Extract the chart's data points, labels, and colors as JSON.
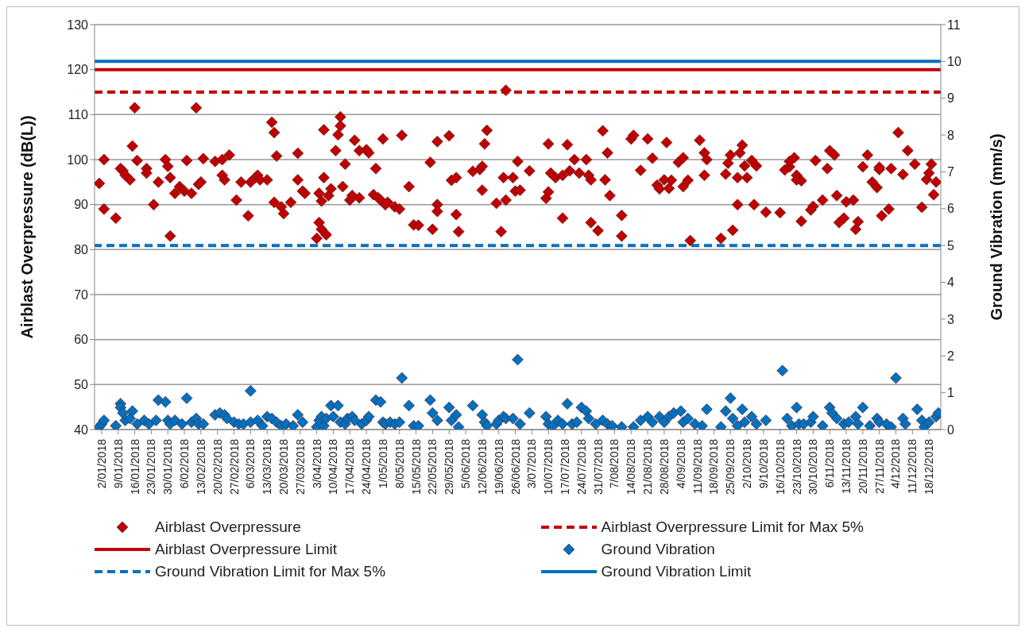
{
  "chart_data": {
    "type": "scatter",
    "ylabel": "Airblast Overpressure (dB(L))",
    "y2label": "Ground Vibration (mm/s)",
    "xlim": [
      "2017-12-30",
      "2018-12-23"
    ],
    "xticks": [
      {
        "value": "2018-01-02",
        "label": "2/01/2018"
      },
      {
        "value": "2018-01-09",
        "label": "9/01/2018"
      },
      {
        "value": "2018-01-16",
        "label": "16/01/2018"
      },
      {
        "value": "2018-01-23",
        "label": "23/01/2018"
      },
      {
        "value": "2018-01-30",
        "label": "30/01/2018"
      },
      {
        "value": "2018-02-06",
        "label": "6/02/2018"
      },
      {
        "value": "2018-02-13",
        "label": "13/02/2018"
      },
      {
        "value": "2018-02-20",
        "label": "20/02/2018"
      },
      {
        "value": "2018-02-27",
        "label": "27/02/2018"
      },
      {
        "value": "2018-03-06",
        "label": "6/03/2018"
      },
      {
        "value": "2018-03-13",
        "label": "13/03/2018"
      },
      {
        "value": "2018-03-20",
        "label": "20/03/2018"
      },
      {
        "value": "2018-03-27",
        "label": "27/03/2018"
      },
      {
        "value": "2018-04-03",
        "label": "3/04/2018"
      },
      {
        "value": "2018-04-10",
        "label": "10/04/2018"
      },
      {
        "value": "2018-04-17",
        "label": "17/04/2018"
      },
      {
        "value": "2018-04-24",
        "label": "24/04/2018"
      },
      {
        "value": "2018-05-01",
        "label": "1/05/2018"
      },
      {
        "value": "2018-05-08",
        "label": "8/05/2018"
      },
      {
        "value": "2018-05-15",
        "label": "15/05/2018"
      },
      {
        "value": "2018-05-22",
        "label": "22/05/2018"
      },
      {
        "value": "2018-05-29",
        "label": "29/05/2018"
      },
      {
        "value": "2018-06-05",
        "label": "5/06/2018"
      },
      {
        "value": "2018-06-12",
        "label": "12/06/2018"
      },
      {
        "value": "2018-06-19",
        "label": "19/06/2018"
      },
      {
        "value": "2018-06-26",
        "label": "26/06/2018"
      },
      {
        "value": "2018-07-03",
        "label": "3/07/2018"
      },
      {
        "value": "2018-07-10",
        "label": "10/07/2018"
      },
      {
        "value": "2018-07-17",
        "label": "17/07/2018"
      },
      {
        "value": "2018-07-24",
        "label": "24/07/2018"
      },
      {
        "value": "2018-07-31",
        "label": "31/07/2018"
      },
      {
        "value": "2018-08-07",
        "label": "7/08/2018"
      },
      {
        "value": "2018-08-14",
        "label": "14/08/2018"
      },
      {
        "value": "2018-08-21",
        "label": "21/08/2018"
      },
      {
        "value": "2018-08-28",
        "label": "28/08/2018"
      },
      {
        "value": "2018-09-04",
        "label": "4/09/2018"
      },
      {
        "value": "2018-09-11",
        "label": "11/09/2018"
      },
      {
        "value": "2018-09-18",
        "label": "18/09/2018"
      },
      {
        "value": "2018-09-25",
        "label": "25/09/2018"
      },
      {
        "value": "2018-10-02",
        "label": "2/10/2018"
      },
      {
        "value": "2018-10-09",
        "label": "9/10/2018"
      },
      {
        "value": "2018-10-16",
        "label": "16/10/2018"
      },
      {
        "value": "2018-10-23",
        "label": "23/10/2018"
      },
      {
        "value": "2018-10-30",
        "label": "30/10/2018"
      },
      {
        "value": "2018-11-06",
        "label": "6/11/2018"
      },
      {
        "value": "2018-11-13",
        "label": "13/11/2018"
      },
      {
        "value": "2018-11-20",
        "label": "20/11/2018"
      },
      {
        "value": "2018-11-27",
        "label": "27/11/2018"
      },
      {
        "value": "2018-12-04",
        "label": "4/12/2018"
      },
      {
        "value": "2018-12-11",
        "label": "11/12/2018"
      },
      {
        "value": "2018-12-18",
        "label": "18/12/2018"
      }
    ],
    "ylim": [
      40,
      130
    ],
    "yticks": [
      40,
      50,
      60,
      70,
      80,
      90,
      100,
      110,
      120,
      130
    ],
    "y2lim": [
      0,
      11
    ],
    "y2ticks": [
      0,
      1,
      2,
      3,
      4,
      5,
      6,
      7,
      8,
      9,
      10,
      11
    ],
    "grid": "y",
    "marker": "diamond",
    "legend": "bottom",
    "series": [
      {
        "name": "Airblast Overpressure",
        "color": "#c00000",
        "x": [
          "2018-01-01",
          "2018-01-03",
          "2018-01-03",
          "2018-01-08",
          "2018-01-10",
          "2018-01-11",
          "2018-01-12",
          "2018-01-14",
          "2018-01-15",
          "2018-01-16",
          "2018-01-17",
          "2018-01-21",
          "2018-01-21",
          "2018-01-24",
          "2018-01-26",
          "2018-01-29",
          "2018-01-30",
          "2018-01-31",
          "2018-01-31",
          "2018-02-02",
          "2018-02-04",
          "2018-02-06",
          "2018-02-07",
          "2018-02-09",
          "2018-02-11",
          "2018-02-12",
          "2018-02-13",
          "2018-02-14",
          "2018-02-19",
          "2018-02-22",
          "2018-02-22",
          "2018-02-23",
          "2018-02-25",
          "2018-02-28",
          "2018-03-02",
          "2018-03-05",
          "2018-03-06",
          "2018-03-08",
          "2018-03-09",
          "2018-03-10",
          "2018-03-13",
          "2018-03-15",
          "2018-03-16",
          "2018-03-16",
          "2018-03-17",
          "2018-03-19",
          "2018-03-20",
          "2018-03-23",
          "2018-03-26",
          "2018-03-26",
          "2018-03-28",
          "2018-03-29",
          "2018-04-03",
          "2018-04-04",
          "2018-04-04",
          "2018-04-05",
          "2018-04-05",
          "2018-04-06",
          "2018-04-06",
          "2018-04-07",
          "2018-04-08",
          "2018-04-09",
          "2018-04-11",
          "2018-04-12",
          "2018-04-13",
          "2018-04-13",
          "2018-04-14",
          "2018-04-15",
          "2018-04-17",
          "2018-04-18",
          "2018-04-19",
          "2018-04-21",
          "2018-04-21",
          "2018-04-24",
          "2018-04-25",
          "2018-04-27",
          "2018-04-28",
          "2018-04-29",
          "2018-04-30",
          "2018-05-01",
          "2018-05-02",
          "2018-05-03",
          "2018-05-06",
          "2018-05-08",
          "2018-05-09",
          "2018-05-12",
          "2018-05-14",
          "2018-05-16",
          "2018-05-21",
          "2018-05-22",
          "2018-05-24",
          "2018-05-24",
          "2018-05-24",
          "2018-05-29",
          "2018-05-30",
          "2018-06-01",
          "2018-06-01",
          "2018-06-02",
          "2018-06-08",
          "2018-06-11",
          "2018-06-12",
          "2018-06-12",
          "2018-06-13",
          "2018-06-14",
          "2018-06-18",
          "2018-06-20",
          "2018-06-21",
          "2018-06-22",
          "2018-06-22",
          "2018-06-25",
          "2018-06-26",
          "2018-06-27",
          "2018-06-28",
          "2018-07-02",
          "2018-07-09",
          "2018-07-10",
          "2018-07-10",
          "2018-07-11",
          "2018-07-13",
          "2018-07-16",
          "2018-07-16",
          "2018-07-18",
          "2018-07-19",
          "2018-07-21",
          "2018-07-23",
          "2018-07-26",
          "2018-07-27",
          "2018-07-28",
          "2018-07-28",
          "2018-07-31",
          "2018-08-02",
          "2018-08-03",
          "2018-08-04",
          "2018-08-05",
          "2018-08-10",
          "2018-08-10",
          "2018-08-14",
          "2018-08-15",
          "2018-08-18",
          "2018-08-21",
          "2018-08-23",
          "2018-08-25",
          "2018-08-26",
          "2018-08-28",
          "2018-08-29",
          "2018-08-30",
          "2018-08-31",
          "2018-09-03",
          "2018-09-05",
          "2018-09-05",
          "2018-09-07",
          "2018-09-08",
          "2018-09-12",
          "2018-09-14",
          "2018-09-14",
          "2018-09-15",
          "2018-09-21",
          "2018-09-23",
          "2018-09-24",
          "2018-09-25",
          "2018-09-26",
          "2018-09-28",
          "2018-09-28",
          "2018-09-29",
          "2018-09-30",
          "2018-10-01",
          "2018-10-02",
          "2018-10-04",
          "2018-10-05",
          "2018-10-06",
          "2018-10-10",
          "2018-10-16",
          "2018-10-18",
          "2018-10-20",
          "2018-10-20",
          "2018-10-22",
          "2018-10-23",
          "2018-10-23",
          "2018-10-25",
          "2018-10-25",
          "2018-10-29",
          "2018-10-30",
          "2018-10-31",
          "2018-11-03",
          "2018-11-05",
          "2018-11-06",
          "2018-11-08",
          "2018-11-09",
          "2018-11-10",
          "2018-11-12",
          "2018-11-13",
          "2018-11-16",
          "2018-11-17",
          "2018-11-18",
          "2018-11-20",
          "2018-11-22",
          "2018-11-24",
          "2018-11-26",
          "2018-11-27",
          "2018-11-27",
          "2018-11-28",
          "2018-12-01",
          "2018-12-02",
          "2018-12-05",
          "2018-12-07",
          "2018-12-09",
          "2018-12-12",
          "2018-12-15",
          "2018-12-17",
          "2018-12-18",
          "2018-12-19",
          "2018-12-20",
          "2018-12-21"
        ],
        "values": [
          94.7,
          100,
          89,
          87,
          98,
          97.5,
          96.5,
          95.5,
          103,
          111.5,
          99.8,
          98,
          97,
          90,
          95,
          100,
          98.5,
          96,
          83,
          92.5,
          94,
          93,
          99.8,
          92.5,
          111.5,
          94.5,
          95,
          100.2,
          99.6,
          100,
          96.5,
          95.5,
          101,
          91,
          95,
          87.5,
          95,
          96,
          96.5,
          95.5,
          95.5,
          108.3,
          90.5,
          106,
          100.8,
          89.5,
          88,
          90.5,
          101.4,
          95.5,
          93,
          92.5,
          82.5,
          92.5,
          86,
          90.8,
          84.5,
          96,
          106.6,
          83.3,
          92,
          93.5,
          102,
          105.5,
          107.5,
          109.5,
          94,
          99,
          91,
          92,
          104.3,
          91.5,
          102,
          102.2,
          101.5,
          92.2,
          98,
          91.5,
          91,
          104.6,
          90,
          90.5,
          89.5,
          89,
          105.4,
          94,
          85.5,
          85.4,
          99.4,
          84.5,
          90,
          88.5,
          104,
          105.3,
          95.4,
          96,
          87.8,
          84,
          97.4,
          97.8,
          93.2,
          98.5,
          103.5,
          106.5,
          90.3,
          84,
          96,
          115.4,
          91,
          96,
          93,
          99.6,
          93.2,
          97.5,
          91.4,
          92.8,
          103.5,
          97,
          96,
          87,
          96.5,
          103.3,
          97.5,
          100,
          97,
          100,
          96.5,
          95.5,
          86,
          84.2,
          106.4,
          95.5,
          101.5,
          92,
          87.6,
          83,
          104.6,
          105.4,
          97.6,
          104.6,
          100.3,
          94.3,
          93.5,
          95.5,
          103.8,
          93.6,
          95.4,
          99.4,
          100.4,
          94,
          95.4,
          82,
          104.3,
          101.5,
          96.5,
          100,
          82.5,
          96.8,
          99.2,
          101,
          84.3,
          96,
          90,
          101.5,
          103.2,
          98.6,
          96,
          99.8,
          90,
          98.6,
          88.3,
          88.2,
          97.7,
          98.4,
          99.6,
          100.4,
          96.5,
          95.5,
          86.3,
          95.3,
          88.8,
          89.6,
          99.8,
          91,
          98,
          102,
          101,
          92,
          86,
          87,
          90.6,
          91,
          84.5,
          86.2,
          98.4,
          101,
          95,
          93.8,
          97.8,
          98.3,
          87.5,
          89,
          98,
          106,
          96.7,
          102,
          99,
          89.4,
          95.6,
          97,
          99,
          92.2,
          95
        ]
      },
      {
        "name": "Ground Vibration",
        "color": "#0070c0",
        "axis": "y2",
        "x": [
          "2018-01-01",
          "2018-01-02",
          "2018-01-03",
          "2018-01-08",
          "2018-01-10",
          "2018-01-10",
          "2018-01-11",
          "2018-01-12",
          "2018-01-14",
          "2018-01-15",
          "2018-01-17",
          "2018-01-20",
          "2018-01-22",
          "2018-01-25",
          "2018-01-26",
          "2018-01-29",
          "2018-01-30",
          "2018-01-31",
          "2018-02-02",
          "2018-02-05",
          "2018-02-07",
          "2018-02-09",
          "2018-02-11",
          "2018-02-12",
          "2018-02-14",
          "2018-02-19",
          "2018-02-21",
          "2018-02-23",
          "2018-02-24",
          "2018-02-27",
          "2018-03-01",
          "2018-03-03",
          "2018-03-06",
          "2018-03-06",
          "2018-03-09",
          "2018-03-11",
          "2018-03-13",
          "2018-03-15",
          "2018-03-17",
          "2018-03-19",
          "2018-03-21",
          "2018-03-24",
          "2018-03-26",
          "2018-03-28",
          "2018-04-03",
          "2018-04-04",
          "2018-04-05",
          "2018-04-06",
          "2018-04-07",
          "2018-04-09",
          "2018-04-10",
          "2018-04-12",
          "2018-04-13",
          "2018-04-15",
          "2018-04-16",
          "2018-04-18",
          "2018-04-19",
          "2018-04-22",
          "2018-04-24",
          "2018-04-25",
          "2018-04-28",
          "2018-04-30",
          "2018-05-01",
          "2018-05-02",
          "2018-05-04",
          "2018-05-06",
          "2018-05-08",
          "2018-05-09",
          "2018-05-12",
          "2018-05-14",
          "2018-05-16",
          "2018-05-21",
          "2018-05-22",
          "2018-05-24",
          "2018-05-29",
          "2018-05-30",
          "2018-06-01",
          "2018-06-02",
          "2018-06-08",
          "2018-06-12",
          "2018-06-13",
          "2018-06-14",
          "2018-06-18",
          "2018-06-19",
          "2018-06-21",
          "2018-06-22",
          "2018-06-25",
          "2018-06-27",
          "2018-06-28",
          "2018-07-02",
          "2018-07-09",
          "2018-07-10",
          "2018-07-12",
          "2018-07-14",
          "2018-07-16",
          "2018-07-18",
          "2018-07-20",
          "2018-07-22",
          "2018-07-24",
          "2018-07-26",
          "2018-07-27",
          "2018-07-30",
          "2018-08-02",
          "2018-08-04",
          "2018-08-06",
          "2018-08-10",
          "2018-08-15",
          "2018-08-18",
          "2018-08-21",
          "2018-08-23",
          "2018-08-26",
          "2018-08-28",
          "2018-08-30",
          "2018-09-01",
          "2018-09-04",
          "2018-09-05",
          "2018-09-07",
          "2018-09-10",
          "2018-09-13",
          "2018-09-15",
          "2018-09-21",
          "2018-09-23",
          "2018-09-25",
          "2018-09-26",
          "2018-09-28",
          "2018-09-30",
          "2018-10-01",
          "2018-10-04",
          "2018-10-06",
          "2018-10-10",
          "2018-10-17",
          "2018-10-19",
          "2018-10-21",
          "2018-10-23",
          "2018-10-24",
          "2018-10-26",
          "2018-10-29",
          "2018-10-30",
          "2018-11-03",
          "2018-11-06",
          "2018-11-07",
          "2018-11-09",
          "2018-11-12",
          "2018-11-14",
          "2018-11-17",
          "2018-11-18",
          "2018-11-20",
          "2018-11-23",
          "2018-11-26",
          "2018-11-27",
          "2018-11-30",
          "2018-12-02",
          "2018-12-04",
          "2018-12-07",
          "2018-12-08",
          "2018-12-13",
          "2018-12-15",
          "2018-12-16",
          "2018-12-18",
          "2018-12-21",
          "2018-12-22"
        ],
        "values": [
          0.07,
          0.15,
          0.25,
          0.1,
          0.7,
          0.6,
          0.45,
          0.25,
          0.3,
          0.5,
          0.15,
          0.25,
          0.15,
          0.25,
          0.8,
          0.75,
          0.25,
          0.15,
          0.25,
          0.15,
          0.85,
          0.2,
          0.3,
          0.15,
          0.15,
          0.4,
          0.45,
          0.4,
          0.3,
          0.2,
          0.15,
          0.15,
          1.05,
          0.2,
          0.25,
          0.1,
          0.35,
          0.3,
          0.2,
          0.1,
          0.15,
          0.1,
          0.4,
          0.2,
          0.07,
          0.25,
          0.35,
          0.1,
          0.3,
          0.65,
          0.35,
          0.65,
          0.2,
          0.15,
          0.3,
          0.35,
          0.25,
          0.15,
          0.25,
          0.35,
          0.8,
          0.75,
          0.2,
          0.15,
          0.2,
          0.15,
          0.2,
          1.4,
          0.65,
          0.1,
          0.1,
          0.8,
          0.45,
          0.25,
          0.6,
          0.25,
          0.4,
          0.07,
          0.65,
          0.4,
          0.2,
          0.1,
          0.15,
          0.25,
          0.35,
          0.3,
          0.3,
          1.9,
          0.15,
          0.45,
          0.35,
          0.15,
          0.1,
          0.25,
          0.15,
          0.7,
          0.15,
          0.2,
          0.6,
          0.5,
          0.3,
          0.15,
          0.25,
          0.15,
          0.1,
          0.07,
          0.07,
          0.25,
          0.35,
          0.2,
          0.35,
          0.2,
          0.35,
          0.45,
          0.5,
          0.2,
          0.3,
          0.15,
          0.1,
          0.55,
          0.07,
          0.5,
          0.85,
          0.3,
          0.1,
          0.55,
          0.2,
          0.35,
          0.15,
          0.25,
          1.6,
          0.3,
          0.1,
          0.6,
          0.15,
          0.15,
          0.2,
          0.35,
          0.1,
          0.6,
          0.45,
          0.3,
          0.15,
          0.2,
          0.35,
          0.15,
          0.6,
          0.1,
          0.3,
          0.2,
          0.15,
          0.07,
          1.4,
          0.3,
          0.15,
          0.55,
          0.25,
          0.07,
          0.2,
          0.35,
          0.45
        ]
      }
    ],
    "ref_lines": [
      {
        "axis": "y",
        "value": 115,
        "label": "Airblast Overpressure Limit for Max 5%",
        "color": "#c00000",
        "line_style": "dashed"
      },
      {
        "axis": "y",
        "value": 120,
        "label": "Airblast Overpressure Limit",
        "color": "#c00000",
        "line_style": "solid"
      },
      {
        "axis": "y2",
        "value": 5,
        "label": "Ground Vibration Limit for Max 5%",
        "color": "#0070c0",
        "line_style": "dashed"
      },
      {
        "axis": "y2",
        "value": 10,
        "label": "Ground Vibration Limit",
        "color": "#0070c0",
        "line_style": "solid"
      }
    ]
  }
}
